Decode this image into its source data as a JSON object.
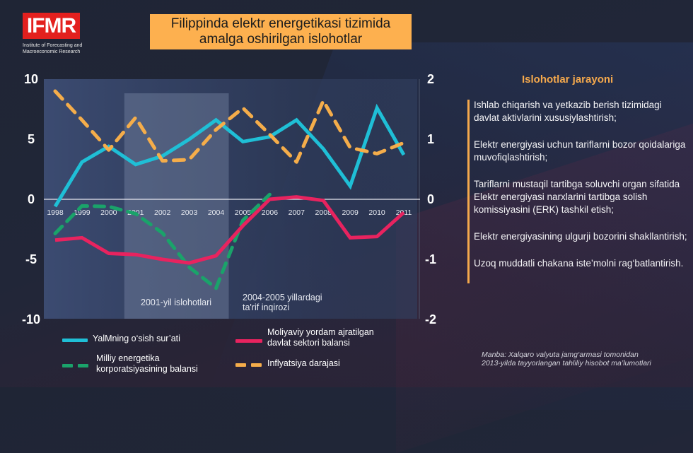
{
  "header": {
    "logo_text": "IFMR",
    "logo_subtitle_line1": "Institute of Forecasting and",
    "logo_subtitle_line2": "Macroeconomic Research",
    "title_line1": "Filippinda elektr energetikasi tizimida",
    "title_line2": "amalga oshirilgan islohotlar"
  },
  "colors": {
    "gdp": "#1fbfd6",
    "public_sector": "#e8235f",
    "npc": "#1aa36a",
    "inflation": "#f5ad4a",
    "title_bg": "#fdb04f",
    "logo_bg": "#e3201e",
    "accent": "#f5a94c"
  },
  "chart_data": {
    "type": "line",
    "title": "Filippinda elektr energetikasi tizimida amalga oshirilgan islohotlar",
    "x": [
      "1998",
      "1999",
      "2000",
      "2001",
      "2002",
      "2003",
      "2004",
      "2005",
      "2006",
      "2007",
      "2008",
      "2009",
      "2010",
      "2011"
    ],
    "x_tick_labels": [
      "1998",
      "1999",
      "2000",
      "2001",
      "2002",
      "2003",
      "2004",
      "2005",
      "2006",
      "2007",
      "2008",
      "2009",
      "2010",
      "2011"
    ],
    "y_left": {
      "range": [
        -10,
        10
      ],
      "ticks": [
        "10",
        "5",
        "0",
        "-5",
        "-10"
      ]
    },
    "y_right": {
      "range": [
        -2,
        2
      ],
      "ticks": [
        "2",
        "1",
        "0",
        "-1",
        "-2"
      ]
    },
    "grid": false,
    "shaded_regions": [
      {
        "from": "2001",
        "to": "2004",
        "label": "2001-yil islohotlari"
      },
      {
        "from": "2005",
        "to": "2005",
        "label_line1": "2004-2005 yillardagi",
        "label_line2": "ta'rif inqirozi"
      }
    ],
    "series": [
      {
        "name": "YalMning o‘sish sur’ati",
        "axis": "left",
        "style": "solid",
        "color_key": "gdp",
        "values": [
          -0.6,
          3.1,
          4.4,
          2.9,
          3.6,
          5.0,
          6.6,
          4.8,
          5.2,
          6.6,
          4.2,
          1.1,
          7.6,
          3.7
        ]
      },
      {
        "name": "Moliyaviy yordam ajratilgan davlat sektori balansi",
        "axis": "left",
        "style": "solid",
        "color_key": "public_sector",
        "values": [
          -3.4,
          -3.2,
          -4.5,
          -4.6,
          -5.0,
          -5.3,
          -4.7,
          -2.2,
          0.0,
          0.2,
          -0.1,
          -3.2,
          -3.1,
          -1.1
        ]
      },
      {
        "name": "Milliy energetika korporatsiyasining balansi",
        "axis": "right",
        "style": "dashed",
        "color_key": "npc",
        "values": [
          -0.57,
          -0.11,
          -0.12,
          -0.24,
          -0.56,
          -1.13,
          -1.48,
          -0.35,
          0.08,
          null,
          null,
          null,
          null,
          null
        ]
      },
      {
        "name": "Inflyatsiya darajasi",
        "axis": "left",
        "style": "dashed",
        "color_key": "inflation",
        "values": [
          9.0,
          6.6,
          4.1,
          6.8,
          3.2,
          3.3,
          5.8,
          7.6,
          5.4,
          3.1,
          8.2,
          4.3,
          3.8,
          4.7
        ]
      }
    ],
    "legend": {
      "placement": "bottom",
      "items": [
        {
          "label": "YalMning o‘sish sur’ati"
        },
        {
          "label_line1": "Moliyaviy yordam ajratilgan",
          "label_line2": "davlat sektori balansi"
        },
        {
          "label_line1": "Milliy energetika",
          "label_line2": "korporatsiyasining balansi"
        },
        {
          "label": "Inflyatsiya darajasi"
        }
      ]
    }
  },
  "sidebar": {
    "title": "Islohotlar jarayoni",
    "items": [
      "Ishlab chiqarish va yetkazib berish tizimidagi davlat aktivlarini xususiylashtirish;",
      "Elektr energiyasi uchun tariflarni bozor qoidalariga muvofiqlashtirish;",
      "Tariflarni mustaqil tartibga soluvchi organ sifatida Elektr energiyasi narxlarini tartibga solish komissiyasini (ERK) tashkil etish;",
      "Elektr energiyasining ulgurji bozorini shakllantirish;",
      "Uzoq muddatli chakana iste’molni rag‘batlantirish."
    ]
  },
  "source": {
    "line1": "Manba: Xalqaro valyuta jamg‘armasi tomonidan",
    "line2": "2013-yilda tayyorlangan tahliliy hisobot ma’lumotlari"
  }
}
